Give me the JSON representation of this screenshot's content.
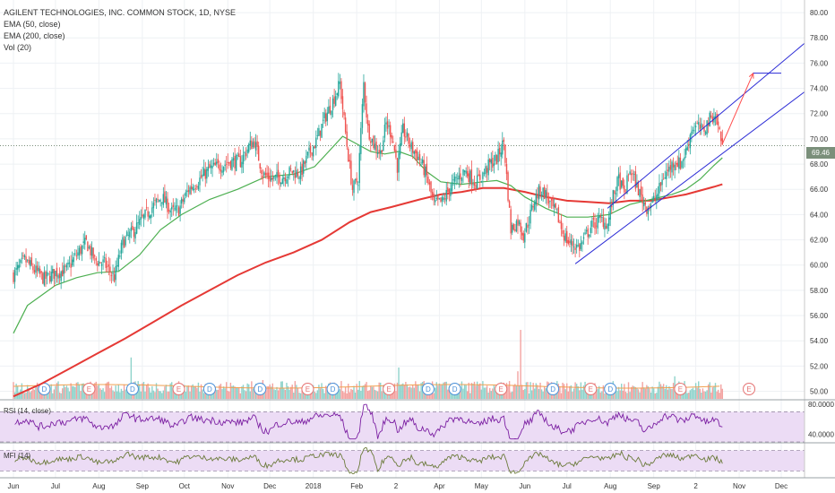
{
  "legend": {
    "title": "AGILENT TECHNOLOGIES, INC. COMMON STOCK, 1D, NYSE",
    "ema50": "EMA (50, close)",
    "ema200": "EMA (200, close)",
    "vol": "Vol (20)"
  },
  "rsi_label": "RSI (14, close)",
  "mfi_label": "MFI (14)",
  "last_price": "69.46",
  "colors": {
    "up": "#26a69a",
    "down": "#ef5350",
    "ema50": "#4caf50",
    "ema200": "#e53935",
    "channel": "#2b2bd6",
    "arrow": "#ff4d4d",
    "rsi": "#7b1fa2",
    "mfi": "#6b7a3a",
    "osc_band": "#ecdcf5"
  },
  "chart_data": {
    "type": "candlestick",
    "price_axis": {
      "ylim": [
        49.4,
        81.0
      ],
      "ticks": [
        "50.00",
        "52.00",
        "54.00",
        "56.00",
        "58.00",
        "60.00",
        "62.00",
        "64.00",
        "66.00",
        "68.00",
        "70.00",
        "72.00",
        "74.00",
        "76.00",
        "78.00",
        "80.00"
      ]
    },
    "rsi_axis": {
      "ylim": [
        30,
        85
      ],
      "ticks": [
        "80.0000",
        "40.0000"
      ],
      "bands": [
        70,
        30
      ]
    },
    "mfi_axis": {
      "ylim": [
        0,
        100
      ],
      "bands": [
        80,
        20
      ]
    },
    "x_axis": {
      "ticks": [
        {
          "label": "Jun",
          "day": 0
        },
        {
          "label": "Jul",
          "day": 30
        },
        {
          "label": "Aug",
          "day": 61
        },
        {
          "label": "Sep",
          "day": 92
        },
        {
          "label": "Oct",
          "day": 122
        },
        {
          "label": "Nov",
          "day": 153
        },
        {
          "label": "Dec",
          "day": 183
        },
        {
          "label": "2018",
          "day": 214
        },
        {
          "label": "Feb",
          "day": 245
        },
        {
          "label": "2",
          "day": 273
        },
        {
          "label": "Apr",
          "day": 304
        },
        {
          "label": "May",
          "day": 334
        },
        {
          "label": "Jun",
          "day": 365
        },
        {
          "label": "Jul",
          "day": 395
        },
        {
          "label": "Aug",
          "day": 426
        },
        {
          "label": "Sep",
          "day": 457
        },
        {
          "label": "2",
          "day": 487
        },
        {
          "label": "Nov",
          "day": 518
        },
        {
          "label": "Dec",
          "day": 548
        }
      ]
    },
    "close_path": [
      [
        0,
        59.2
      ],
      [
        8,
        60.4
      ],
      [
        15,
        59.6
      ],
      [
        22,
        58.9
      ],
      [
        30,
        59.4
      ],
      [
        38,
        59.6
      ],
      [
        45,
        60.8
      ],
      [
        52,
        61.8
      ],
      [
        58,
        60.4
      ],
      [
        65,
        60.1
      ],
      [
        72,
        59.0
      ],
      [
        78,
        61.8
      ],
      [
        85,
        62.6
      ],
      [
        92,
        63.6
      ],
      [
        99,
        64.6
      ],
      [
        106,
        65.4
      ],
      [
        113,
        64.2
      ],
      [
        118,
        64.4
      ],
      [
        125,
        66.0
      ],
      [
        132,
        66.7
      ],
      [
        140,
        67.6
      ],
      [
        148,
        67.9
      ],
      [
        155,
        68.2
      ],
      [
        162,
        68.2
      ],
      [
        168,
        69.4
      ],
      [
        172,
        69.8
      ],
      [
        178,
        67.2
      ],
      [
        185,
        66.8
      ],
      [
        192,
        67.0
      ],
      [
        198,
        67.4
      ],
      [
        205,
        67.3
      ],
      [
        210,
        68.6
      ],
      [
        216,
        69.8
      ],
      [
        222,
        71.6
      ],
      [
        228,
        73.0
      ],
      [
        233,
        74.4
      ],
      [
        238,
        69.5
      ],
      [
        242,
        66.0
      ],
      [
        246,
        66.8
      ],
      [
        250,
        74.4
      ],
      [
        253,
        70.8
      ],
      [
        257,
        69.6
      ],
      [
        262,
        68.9
      ],
      [
        266,
        71.2
      ],
      [
        270,
        70.4
      ],
      [
        274,
        67.8
      ],
      [
        278,
        70.7
      ],
      [
        284,
        69.3
      ],
      [
        290,
        68.4
      ],
      [
        295,
        67.0
      ],
      [
        300,
        64.8
      ],
      [
        306,
        65.0
      ],
      [
        312,
        66.2
      ],
      [
        318,
        67.0
      ],
      [
        322,
        67.5
      ],
      [
        326,
        67.0
      ],
      [
        330,
        66.5
      ],
      [
        335,
        67.2
      ],
      [
        340,
        68.0
      ],
      [
        345,
        68.4
      ],
      [
        350,
        69.8
      ],
      [
        355,
        62.8
      ],
      [
        360,
        63.5
      ],
      [
        364,
        62.4
      ],
      [
        368,
        63.6
      ],
      [
        372,
        65.2
      ],
      [
        376,
        66.0
      ],
      [
        380,
        65.6
      ],
      [
        384,
        64.6
      ],
      [
        388,
        64.0
      ],
      [
        392,
        62.6
      ],
      [
        396,
        61.8
      ],
      [
        400,
        61.6
      ],
      [
        404,
        61.4
      ],
      [
        408,
        62.2
      ],
      [
        412,
        63.0
      ],
      [
        416,
        63.4
      ],
      [
        420,
        63.6
      ],
      [
        424,
        63.2
      ],
      [
        428,
        65.4
      ],
      [
        432,
        66.8
      ],
      [
        436,
        65.6
      ],
      [
        440,
        67.6
      ],
      [
        444,
        66.5
      ],
      [
        448,
        65.4
      ],
      [
        452,
        64.6
      ],
      [
        456,
        64.9
      ],
      [
        460,
        65.7
      ],
      [
        464,
        67.0
      ],
      [
        468,
        67.6
      ],
      [
        472,
        68.3
      ],
      [
        476,
        68.0
      ],
      [
        480,
        69.0
      ],
      [
        484,
        70.8
      ],
      [
        488,
        71.0
      ],
      [
        492,
        70.6
      ],
      [
        496,
        71.4
      ],
      [
        500,
        72.0
      ],
      [
        504,
        70.6
      ],
      [
        506,
        69.5
      ]
    ],
    "ema50_path": [
      [
        0,
        54.6
      ],
      [
        10,
        56.8
      ],
      [
        20,
        57.6
      ],
      [
        30,
        58.4
      ],
      [
        45,
        59.0
      ],
      [
        60,
        59.4
      ],
      [
        75,
        59.5
      ],
      [
        90,
        60.8
      ],
      [
        105,
        62.8
      ],
      [
        120,
        64.0
      ],
      [
        140,
        65.2
      ],
      [
        160,
        66.0
      ],
      [
        180,
        67.0
      ],
      [
        200,
        67.2
      ],
      [
        215,
        67.8
      ],
      [
        225,
        69.0
      ],
      [
        235,
        70.2
      ],
      [
        245,
        69.6
      ],
      [
        255,
        69.0
      ],
      [
        265,
        68.8
      ],
      [
        275,
        69.0
      ],
      [
        285,
        68.6
      ],
      [
        295,
        67.4
      ],
      [
        305,
        66.6
      ],
      [
        320,
        66.4
      ],
      [
        335,
        66.6
      ],
      [
        345,
        66.7
      ],
      [
        355,
        66.3
      ],
      [
        365,
        65.4
      ],
      [
        380,
        64.5
      ],
      [
        395,
        63.8
      ],
      [
        410,
        63.8
      ],
      [
        425,
        64.0
      ],
      [
        440,
        64.8
      ],
      [
        455,
        65.2
      ],
      [
        470,
        65.6
      ],
      [
        480,
        66.0
      ],
      [
        490,
        66.8
      ],
      [
        500,
        67.9
      ],
      [
        506,
        68.5
      ]
    ],
    "ema200_path": [
      [
        0,
        49.6
      ],
      [
        20,
        50.6
      ],
      [
        40,
        51.8
      ],
      [
        60,
        53.0
      ],
      [
        80,
        54.2
      ],
      [
        100,
        55.5
      ],
      [
        120,
        56.8
      ],
      [
        140,
        58.0
      ],
      [
        160,
        59.2
      ],
      [
        180,
        60.2
      ],
      [
        200,
        61.0
      ],
      [
        220,
        62.0
      ],
      [
        240,
        63.4
      ],
      [
        255,
        64.2
      ],
      [
        270,
        64.6
      ],
      [
        290,
        65.2
      ],
      [
        305,
        65.6
      ],
      [
        320,
        65.8
      ],
      [
        335,
        66.1
      ],
      [
        350,
        66.1
      ],
      [
        365,
        65.8
      ],
      [
        380,
        65.4
      ],
      [
        395,
        65.1
      ],
      [
        410,
        65.0
      ],
      [
        425,
        64.9
      ],
      [
        440,
        65.1
      ],
      [
        455,
        65.1
      ],
      [
        470,
        65.4
      ],
      [
        480,
        65.6
      ],
      [
        490,
        65.9
      ],
      [
        500,
        66.2
      ],
      [
        506,
        66.4
      ]
    ],
    "channel": {
      "upper": [
        [
          424,
          64.5
        ],
        [
          580,
          79.0
        ]
      ],
      "lower": [
        [
          401,
          60.1
        ],
        [
          580,
          75.0
        ]
      ]
    },
    "target_arrow": {
      "from": [
        506,
        69.6
      ],
      "to": [
        528,
        75.2
      ]
    },
    "target_level": {
      "price": 75.2,
      "from_day": 528,
      "to_day": 548
    },
    "volume": {
      "baseline_day_step": 1,
      "spikes": [
        [
          84,
          3.3
        ],
        [
          178,
          1.5
        ],
        [
          275,
          2.5
        ],
        [
          337,
          0.9
        ],
        [
          362,
          5.5
        ],
        [
          360,
          2.2
        ],
        [
          472,
          1.8
        ],
        [
          508,
          1.0
        ]
      ]
    },
    "volume_markers": [
      {
        "day": 22,
        "type": "D"
      },
      {
        "day": 54,
        "type": "E"
      },
      {
        "day": 85,
        "type": "D"
      },
      {
        "day": 118,
        "type": "E"
      },
      {
        "day": 140,
        "type": "D"
      },
      {
        "day": 176,
        "type": "D"
      },
      {
        "day": 210,
        "type": "E"
      },
      {
        "day": 228,
        "type": "D"
      },
      {
        "day": 268,
        "type": "E"
      },
      {
        "day": 296,
        "type": "D"
      },
      {
        "day": 315,
        "type": "D"
      },
      {
        "day": 348,
        "type": "E"
      },
      {
        "day": 385,
        "type": "D"
      },
      {
        "day": 412,
        "type": "E"
      },
      {
        "day": 426,
        "type": "D"
      },
      {
        "day": 476,
        "type": "E"
      },
      {
        "day": 525,
        "type": "E"
      }
    ]
  }
}
